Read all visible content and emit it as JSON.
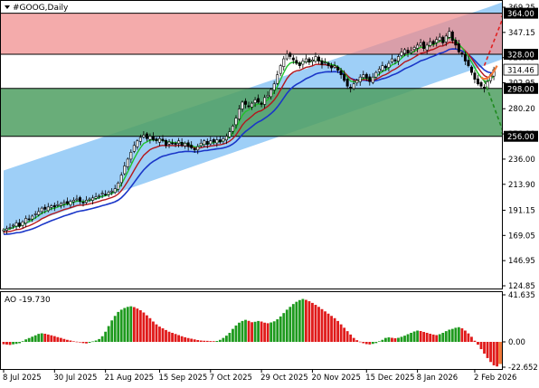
{
  "window": {
    "title": "#GOOG,Daily",
    "menu_icon": "triangle-down-icon"
  },
  "colors": {
    "channel_fill": "#9ecff7",
    "resistance_zone": "#f08a8a",
    "support_zone": "#4f9f62",
    "candles": "#000000",
    "ma_fast": "#21c22a",
    "ma_mid": "#b4161c",
    "ma_slow": "#1a36c8",
    "ao_up": "#1e9a1e",
    "ao_down": "#e01a1a",
    "forecast_up": "#e02020",
    "forecast_down": "#1e8a1e"
  },
  "chart_data": [
    {
      "type": "candlestick",
      "symbol": "#GOOG",
      "timeframe": "Daily",
      "x_tick_labels": [
        "8 Jul 2025",
        "30 Jul 2025",
        "21 Aug 2025",
        "15 Sep 2025",
        "7 Oct 2025",
        "29 Oct 2025",
        "20 Nov 2025",
        "15 Dec 2025",
        "8 Jan 2026",
        "2 Feb 2026"
      ],
      "x_ticks": [
        {
          "label": "8 Jul 2025",
          "index": 0
        },
        {
          "label": "30 Jul 2025",
          "index": 16
        },
        {
          "label": "21 Aug 2025",
          "index": 32
        },
        {
          "label": "15 Sep 2025",
          "index": 49
        },
        {
          "label": "7 Oct 2025",
          "index": 65
        },
        {
          "label": "29 Oct 2025",
          "index": 81
        },
        {
          "label": "20 Nov 2025",
          "index": 97
        },
        {
          "label": "15 Dec 2025",
          "index": 114
        },
        {
          "label": "8 Jan 2026",
          "index": 130
        },
        {
          "label": "2 Feb 2026",
          "index": 148
        }
      ],
      "y_tick_labels": [
        "369.25",
        "347.15",
        "325.05",
        "302.95",
        "280.20",
        "258.10",
        "236.00",
        "213.90",
        "191.15",
        "169.05",
        "146.95",
        "124.85"
      ],
      "y_ticks": [
        369.25,
        347.15,
        325.05,
        302.95,
        280.2,
        258.1,
        236.0,
        213.9,
        191.15,
        169.05,
        146.95,
        124.85
      ],
      "ylim": [
        124.85,
        369.25
      ],
      "levels": [
        {
          "label": "364.00",
          "value": 364.0
        },
        {
          "label": "328.00",
          "value": 328.0
        },
        {
          "label": "298.00",
          "value": 298.0
        },
        {
          "label": "256.00",
          "value": 256.0
        }
      ],
      "current_price": {
        "label": "314.46",
        "value": 314.46
      },
      "zones": [
        {
          "from": 328.0,
          "to": 364.0,
          "kind": "resistance"
        },
        {
          "from": 256.0,
          "to": 298.0,
          "kind": "support"
        }
      ],
      "channel": {
        "upper": [
          [
            0,
            226.0
          ],
          [
            152,
            369.0
          ],
          [
            158,
            375.0
          ]
        ],
        "lower": [
          [
            0,
            172.0
          ],
          [
            152,
            319.0
          ],
          [
            158,
            325.0
          ]
        ]
      },
      "forecast_arrows": [
        {
          "from": [
            151,
            318
          ],
          "to": [
            158,
            364
          ],
          "direction": "up"
        },
        {
          "from": [
            151,
            305
          ],
          "to": [
            158,
            256
          ],
          "direction": "down"
        }
      ],
      "close": [
        174,
        175,
        176,
        178,
        180,
        177,
        181,
        184,
        183,
        186,
        188,
        190,
        193,
        192,
        194,
        195,
        194,
        196,
        197,
        198,
        197,
        199,
        200,
        201,
        199,
        198,
        200,
        201,
        202,
        203,
        204,
        206,
        205,
        207,
        208,
        210,
        215,
        222,
        230,
        236,
        242,
        248,
        252,
        255,
        257,
        254,
        256,
        253,
        252,
        254,
        252,
        248,
        251,
        250,
        249,
        252,
        248,
        250,
        247,
        246,
        244,
        247,
        250,
        252,
        249,
        252,
        251,
        253,
        251,
        254,
        256,
        260,
        265,
        272,
        280,
        286,
        284,
        282,
        285,
        288,
        286,
        284,
        290,
        292,
        297,
        302,
        310,
        318,
        324,
        328,
        326,
        323,
        320,
        318,
        322,
        324,
        321,
        323,
        326,
        322,
        319,
        321,
        318,
        316,
        318,
        314,
        310,
        305,
        300,
        298,
        302,
        305,
        308,
        310,
        307,
        304,
        308,
        312,
        315,
        318,
        316,
        320,
        324,
        322,
        326,
        330,
        332,
        329,
        331,
        334,
        336,
        338,
        333,
        336,
        339,
        337,
        341,
        343,
        338,
        344,
        348,
        340,
        336,
        330,
        328,
        322,
        318,
        312,
        306,
        302,
        300,
        298,
        304,
        310,
        314.46
      ]
    },
    {
      "type": "bar",
      "indicator": "AO",
      "title": "AO -19.730",
      "current_value": -19.73,
      "y_tick_labels": [
        "41.635",
        "0.00",
        "-22.652"
      ],
      "ylim": [
        -22.652,
        41.635
      ],
      "values": [
        -2.1,
        -2.4,
        -2.7,
        -2.2,
        -1.8,
        -1.2,
        0.6,
        2.2,
        3.4,
        4.6,
        5.8,
        7.1,
        7.6,
        7.2,
        6.5,
        5.8,
        5.1,
        4.2,
        3.5,
        2.6,
        1.8,
        1.2,
        0.5,
        0.2,
        -0.4,
        -1.1,
        -1.4,
        -0.8,
        0.4,
        1.2,
        2.5,
        5.0,
        9.0,
        14.0,
        19.0,
        23.0,
        26.5,
        28.5,
        30.0,
        31.0,
        31.5,
        30.8,
        29.5,
        28.0,
        26.0,
        23.5,
        21.0,
        18.0,
        15.5,
        13.5,
        12.0,
        10.5,
        9.0,
        8.0,
        7.0,
        6.0,
        5.0,
        4.1,
        3.4,
        2.8,
        2.2,
        1.6,
        1.2,
        1.0,
        0.9,
        0.7,
        0.6,
        0.8,
        1.8,
        3.5,
        5.5,
        8.0,
        11.5,
        14.5,
        17.0,
        18.5,
        19.5,
        18.6,
        17.4,
        17.8,
        18.5,
        18.0,
        17.0,
        16.5,
        17.2,
        18.2,
        20.0,
        22.5,
        25.5,
        28.5,
        31.0,
        33.5,
        35.5,
        37.0,
        38.0,
        37.2,
        36.0,
        34.5,
        32.8,
        31.0,
        29.0,
        27.0,
        25.0,
        23.0,
        21.0,
        18.5,
        15.5,
        12.5,
        9.5,
        6.5,
        3.5,
        1.5,
        0.2,
        -1.2,
        -2.0,
        -2.3,
        -1.8,
        -1.1,
        0.5,
        1.8,
        3.5,
        4.0,
        3.6,
        3.2,
        3.6,
        4.5,
        5.5,
        6.8,
        8.0,
        9.2,
        10.0,
        9.6,
        8.8,
        8.0,
        7.2,
        6.5,
        6.0,
        6.8,
        8.0,
        9.5,
        10.8,
        11.5,
        12.5,
        13.0,
        12.0,
        10.0,
        7.5,
        4.5,
        1.0,
        -2.5,
        -6.5,
        -10.5,
        -14.5,
        -18.0,
        -21.0,
        -22.0,
        -19.73
      ]
    }
  ]
}
